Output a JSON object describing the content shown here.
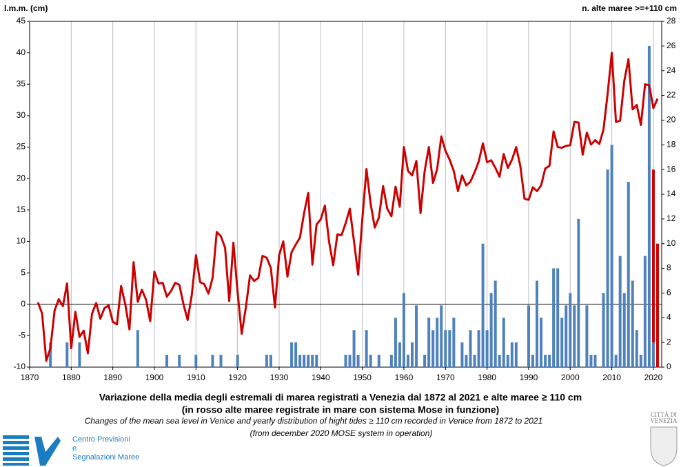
{
  "chart_data": {
    "type": "combo",
    "title": "Variazione della media degli estremali di marea registrati a Venezia dal 1872 al 2021 e alte maree ≥ 110 cm",
    "subtitle": "(in rosso alte maree registrate in mare con sistema Mose in funzione)",
    "caption": [
      "Changes of the mean sea level in Venice and yearly distribution of hight tides ≥ 110 cm recorded in Venice from 1872 to 2021",
      "(from december 2020 MOSE system in operation)"
    ],
    "ylabel": "l.m.m. (cm)",
    "y2label": "n. alte maree >=+110 cm",
    "x": [
      1872,
      1873,
      1874,
      1875,
      1876,
      1877,
      1878,
      1879,
      1880,
      1881,
      1882,
      1883,
      1884,
      1885,
      1886,
      1887,
      1888,
      1889,
      1890,
      1891,
      1892,
      1893,
      1894,
      1895,
      1896,
      1897,
      1898,
      1899,
      1900,
      1901,
      1902,
      1903,
      1904,
      1905,
      1906,
      1907,
      1908,
      1909,
      1910,
      1911,
      1912,
      1913,
      1914,
      1915,
      1916,
      1917,
      1918,
      1919,
      1920,
      1921,
      1922,
      1923,
      1924,
      1925,
      1926,
      1927,
      1928,
      1929,
      1930,
      1931,
      1932,
      1933,
      1934,
      1935,
      1936,
      1937,
      1938,
      1939,
      1940,
      1941,
      1942,
      1943,
      1944,
      1945,
      1946,
      1947,
      1948,
      1949,
      1950,
      1951,
      1952,
      1953,
      1954,
      1955,
      1956,
      1957,
      1958,
      1959,
      1960,
      1961,
      1962,
      1963,
      1964,
      1965,
      1966,
      1967,
      1968,
      1969,
      1970,
      1971,
      1972,
      1973,
      1974,
      1975,
      1976,
      1977,
      1978,
      1979,
      1980,
      1981,
      1982,
      1983,
      1984,
      1985,
      1986,
      1987,
      1988,
      1989,
      1990,
      1991,
      1992,
      1993,
      1994,
      1995,
      1996,
      1997,
      1998,
      1999,
      2000,
      2001,
      2002,
      2003,
      2004,
      2005,
      2006,
      2007,
      2008,
      2009,
      2010,
      2011,
      2012,
      2013,
      2014,
      2015,
      2016,
      2017,
      2018,
      2019,
      2020,
      2021
    ],
    "series": [
      {
        "kind": "line",
        "axis": "y",
        "color": "#cc0000",
        "values": [
          0.3,
          -1.5,
          -9,
          -7,
          -1,
          0.8,
          -0.3,
          3.3,
          -7,
          -1.2,
          -5.2,
          -4.2,
          -7.8,
          -1.5,
          0.2,
          -2.3,
          -0.6,
          -0.2,
          -2.8,
          -3.2,
          2.9,
          0,
          -4,
          6.7,
          0.4,
          2.3,
          0.7,
          -2.7,
          5.2,
          3.3,
          3.4,
          1.2,
          2.1,
          3.4,
          3.1,
          0,
          -2.5,
          1.5,
          7.8,
          3.5,
          3.2,
          1.7,
          4.2,
          11.5,
          10.8,
          9,
          0.5,
          9.8,
          2,
          -4.7,
          -0.5,
          4.6,
          3.7,
          4.2,
          7.7,
          7.4,
          5.8,
          -0.5,
          7.8,
          10,
          4.4,
          8.3,
          9.5,
          10.6,
          14.5,
          17.7,
          6.3,
          12.7,
          13.5,
          15.7,
          10,
          6.2,
          11.1,
          11,
          12.9,
          15.2,
          10,
          4.7,
          13.5,
          21.5,
          16,
          12.2,
          13.8,
          18.8,
          15.2,
          14,
          18.7,
          15.5,
          25,
          21.2,
          20.5,
          22.8,
          14.5,
          21.2,
          25,
          19.3,
          21.5,
          26.7,
          24.4,
          23,
          21.2,
          18,
          20.5,
          18.9,
          19.5,
          21,
          22.7,
          25.6,
          22.6,
          22.9,
          21.7,
          20.3,
          23.9,
          21.7,
          23,
          25,
          22,
          16.8,
          16.6,
          18.6,
          18,
          18.9,
          21.6,
          22,
          27.5,
          25,
          24.9,
          25.2,
          25.3,
          29,
          28.9,
          23.8,
          27.3,
          25.4,
          26.1,
          25.5,
          27.8,
          33.5,
          40,
          29,
          29.2,
          35.5,
          39,
          31,
          31.7,
          28.5,
          35,
          34.8,
          31.2,
          32.7
        ]
      },
      {
        "kind": "bar",
        "axis": "y2",
        "color": "#4f81bd",
        "values": [
          null,
          null,
          null,
          2,
          null,
          null,
          null,
          2,
          null,
          null,
          2,
          null,
          null,
          null,
          null,
          null,
          null,
          null,
          null,
          null,
          null,
          null,
          null,
          null,
          3,
          null,
          null,
          null,
          null,
          null,
          null,
          1,
          null,
          null,
          1,
          null,
          null,
          null,
          1,
          null,
          null,
          null,
          1,
          null,
          1,
          null,
          null,
          null,
          1,
          null,
          null,
          null,
          null,
          null,
          null,
          1,
          1,
          null,
          null,
          null,
          null,
          2,
          2,
          1,
          1,
          1,
          1,
          1,
          null,
          null,
          null,
          null,
          null,
          null,
          1,
          1,
          3,
          1,
          null,
          3,
          1,
          null,
          1,
          null,
          null,
          1,
          4,
          2,
          6,
          1,
          2,
          5,
          null,
          1,
          4,
          3,
          4,
          5,
          3,
          3,
          4,
          null,
          2,
          1,
          3,
          1,
          3,
          10,
          3,
          6,
          7,
          1,
          4,
          1,
          2,
          2,
          null,
          null,
          5,
          1,
          7,
          4,
          1,
          1,
          8,
          8,
          4,
          5,
          6,
          5,
          12,
          null,
          5,
          1,
          1,
          null,
          6,
          16,
          18,
          1,
          9,
          6,
          15,
          7,
          3,
          1,
          9,
          26,
          2,
          null
        ]
      },
      {
        "kind": "bar",
        "axis": "y2",
        "color": "#cc0000",
        "values": [
          null,
          null,
          null,
          null,
          null,
          null,
          null,
          null,
          null,
          null,
          null,
          null,
          null,
          null,
          null,
          null,
          null,
          null,
          null,
          null,
          null,
          null,
          null,
          null,
          null,
          null,
          null,
          null,
          null,
          null,
          null,
          null,
          null,
          null,
          null,
          null,
          null,
          null,
          null,
          null,
          null,
          null,
          null,
          null,
          null,
          null,
          null,
          null,
          null,
          null,
          null,
          null,
          null,
          null,
          null,
          null,
          null,
          null,
          null,
          null,
          null,
          null,
          null,
          null,
          null,
          null,
          null,
          null,
          null,
          null,
          null,
          null,
          null,
          null,
          null,
          null,
          null,
          null,
          null,
          null,
          null,
          null,
          null,
          null,
          null,
          null,
          null,
          null,
          null,
          null,
          null,
          null,
          null,
          null,
          null,
          null,
          null,
          null,
          null,
          null,
          null,
          null,
          null,
          null,
          null,
          null,
          null,
          null,
          null,
          null,
          null,
          null,
          null,
          null,
          null,
          null,
          null,
          null,
          null,
          null,
          null,
          null,
          null,
          null,
          null,
          null,
          null,
          null,
          null,
          null,
          null,
          null,
          null,
          null,
          null,
          null,
          null,
          null,
          null,
          null,
          null,
          null,
          null,
          null,
          null,
          null,
          null,
          null,
          14,
          10
        ]
      }
    ],
    "xlim": [
      1870,
      2022
    ],
    "xticks": [
      1870,
      1880,
      1890,
      1900,
      1910,
      1920,
      1930,
      1940,
      1950,
      1960,
      1970,
      1980,
      1990,
      2000,
      2010,
      2020
    ],
    "ylim": [
      -10,
      45
    ],
    "yticks": [
      -10,
      -5,
      0,
      5,
      10,
      15,
      20,
      25,
      30,
      35,
      40,
      45
    ],
    "y2lim": [
      0,
      28
    ],
    "y2ticks": [
      0,
      2,
      4,
      6,
      8,
      10,
      12,
      14,
      16,
      18,
      20,
      22,
      24,
      26,
      28
    ],
    "hline": 0,
    "grid": "x"
  },
  "logo": {
    "lines": [
      "Centro Previsioni",
      "e",
      "Segnalazioni Maree"
    ],
    "crest": [
      "CITTÀ DI",
      "VENEZIA"
    ]
  }
}
